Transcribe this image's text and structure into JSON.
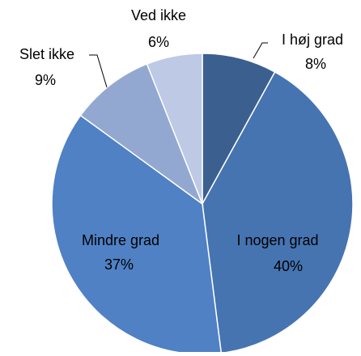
{
  "chart_data": {
    "type": "pie",
    "categories": [
      "I høj grad",
      "I nogen grad",
      "Mindre grad",
      "Slet ikke",
      "Ved ikke"
    ],
    "values": [
      8,
      40,
      37,
      9,
      6
    ],
    "value_labels": [
      "8%",
      "40%",
      "37%",
      "9%",
      "6%"
    ],
    "colors": [
      "#3b5f8f",
      "#4674b1",
      "#4f81c4",
      "#93a8d1",
      "#bdc9e5"
    ]
  }
}
